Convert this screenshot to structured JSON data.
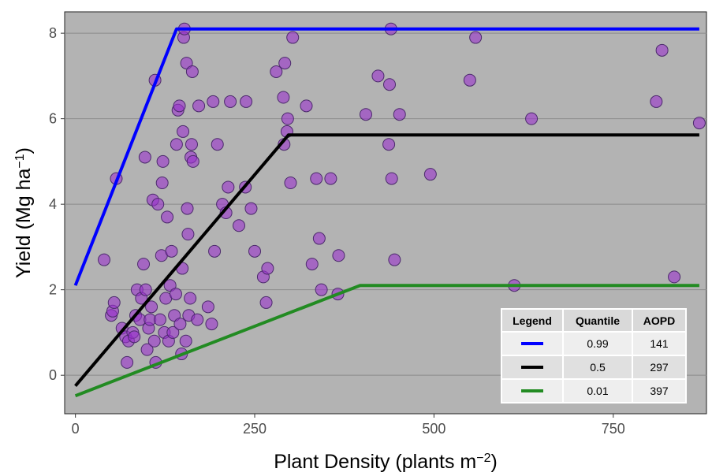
{
  "chart_data": {
    "type": "scatter",
    "xlabel": "Plant Density (plants m",
    "xlabel_sup": "−2",
    "xlabel_suffix": ")",
    "ylabel": "Yield (Mg ha",
    "ylabel_sup": "−1",
    "ylabel_suffix": ")",
    "xlim": [
      -15,
      880
    ],
    "ylim": [
      -0.9,
      8.5
    ],
    "x_ticks": [
      0,
      250,
      500,
      750
    ],
    "x_tick_labels": [
      "0",
      "250",
      "500",
      "750"
    ],
    "y_ticks": [
      0,
      2,
      4,
      6,
      8
    ],
    "y_tick_labels": [
      "0",
      "2",
      "4",
      "6",
      "8"
    ],
    "grid": "horizontal",
    "colors": {
      "panel": "#b3b3b3",
      "gridline": "#8c8c8c",
      "points_fill": "#9932cc",
      "points_stroke": "#4b2a6b"
    },
    "points": [
      [
        40,
        2.7
      ],
      [
        50,
        1.4
      ],
      [
        52,
        1.5
      ],
      [
        54,
        1.7
      ],
      [
        57,
        4.6
      ],
      [
        65,
        1.1
      ],
      [
        70,
        0.9
      ],
      [
        72,
        0.3
      ],
      [
        74,
        0.8
      ],
      [
        80,
        1.0
      ],
      [
        82,
        0.9
      ],
      [
        84,
        1.4
      ],
      [
        86,
        2.0
      ],
      [
        90,
        1.3
      ],
      [
        92,
        1.8
      ],
      [
        95,
        2.6
      ],
      [
        97,
        5.1
      ],
      [
        98,
        2.0
      ],
      [
        100,
        0.6
      ],
      [
        102,
        1.1
      ],
      [
        104,
        1.3
      ],
      [
        106,
        1.6
      ],
      [
        108,
        4.1
      ],
      [
        110,
        0.8
      ],
      [
        111,
        6.9
      ],
      [
        112,
        0.3
      ],
      [
        115,
        4.0
      ],
      [
        118,
        1.3
      ],
      [
        120,
        2.8
      ],
      [
        121,
        4.5
      ],
      [
        122,
        5.0
      ],
      [
        124,
        1.0
      ],
      [
        126,
        1.8
      ],
      [
        128,
        3.7
      ],
      [
        130,
        0.8
      ],
      [
        132,
        2.1
      ],
      [
        134,
        2.9
      ],
      [
        136,
        1.0
      ],
      [
        138,
        1.4
      ],
      [
        140,
        1.9
      ],
      [
        141,
        5.4
      ],
      [
        143,
        6.2
      ],
      [
        145,
        6.3
      ],
      [
        146,
        1.2
      ],
      [
        148,
        0.5
      ],
      [
        149,
        2.5
      ],
      [
        150,
        5.7
      ],
      [
        151,
        7.9
      ],
      [
        152,
        8.1
      ],
      [
        154,
        0.8
      ],
      [
        155,
        7.3
      ],
      [
        156,
        3.9
      ],
      [
        157,
        3.3
      ],
      [
        158,
        1.4
      ],
      [
        160,
        1.8
      ],
      [
        161,
        5.1
      ],
      [
        162,
        5.4
      ],
      [
        163,
        7.1
      ],
      [
        164,
        5.0
      ],
      [
        170,
        1.3
      ],
      [
        172,
        6.3
      ],
      [
        185,
        1.6
      ],
      [
        190,
        1.2
      ],
      [
        192,
        6.4
      ],
      [
        194,
        2.9
      ],
      [
        198,
        5.4
      ],
      [
        205,
        4.0
      ],
      [
        210,
        3.8
      ],
      [
        213,
        4.4
      ],
      [
        216,
        6.4
      ],
      [
        228,
        3.5
      ],
      [
        237,
        4.4
      ],
      [
        238,
        6.4
      ],
      [
        245,
        3.9
      ],
      [
        250,
        2.9
      ],
      [
        262,
        2.3
      ],
      [
        266,
        1.7
      ],
      [
        268,
        2.5
      ],
      [
        280,
        7.1
      ],
      [
        290,
        6.5
      ],
      [
        291,
        5.4
      ],
      [
        292,
        7.3
      ],
      [
        295,
        5.7
      ],
      [
        296,
        6.0
      ],
      [
        300,
        4.5
      ],
      [
        303,
        7.9
      ],
      [
        322,
        6.3
      ],
      [
        330,
        2.6
      ],
      [
        336,
        4.6
      ],
      [
        340,
        3.2
      ],
      [
        343,
        2.0
      ],
      [
        356,
        4.6
      ],
      [
        366,
        1.9
      ],
      [
        367,
        2.8
      ],
      [
        405,
        6.1
      ],
      [
        422,
        7.0
      ],
      [
        437,
        5.4
      ],
      [
        438,
        6.8
      ],
      [
        440,
        8.1
      ],
      [
        441,
        4.6
      ],
      [
        445,
        2.7
      ],
      [
        452,
        6.1
      ],
      [
        495,
        4.7
      ],
      [
        550,
        6.9
      ],
      [
        558,
        7.9
      ],
      [
        612,
        2.1
      ],
      [
        636,
        6.0
      ],
      [
        810,
        6.4
      ],
      [
        818,
        7.6
      ],
      [
        835,
        2.3
      ],
      [
        870,
        5.9
      ]
    ],
    "series": [
      {
        "color": "#0000ff",
        "points": [
          [
            0,
            2.1
          ],
          [
            141,
            8.1
          ],
          [
            870,
            8.1
          ]
        ]
      },
      {
        "color": "#000000",
        "points": [
          [
            0,
            -0.25
          ],
          [
            297,
            5.62
          ],
          [
            870,
            5.62
          ]
        ]
      },
      {
        "color": "#228b22",
        "points": [
          [
            0,
            -0.48
          ],
          [
            397,
            2.1
          ],
          [
            870,
            2.1
          ]
        ]
      }
    ],
    "legend_table": {
      "placement": "bottom-right",
      "headers": [
        "Legend",
        "Quantile",
        "AOPD"
      ],
      "rows": [
        {
          "color": "#0000ff",
          "quantile": "0.99",
          "aopd": "141"
        },
        {
          "color": "#000000",
          "quantile": "0.5",
          "aopd": "297"
        },
        {
          "color": "#228b22",
          "quantile": "0.01",
          "aopd": "397"
        }
      ]
    }
  }
}
